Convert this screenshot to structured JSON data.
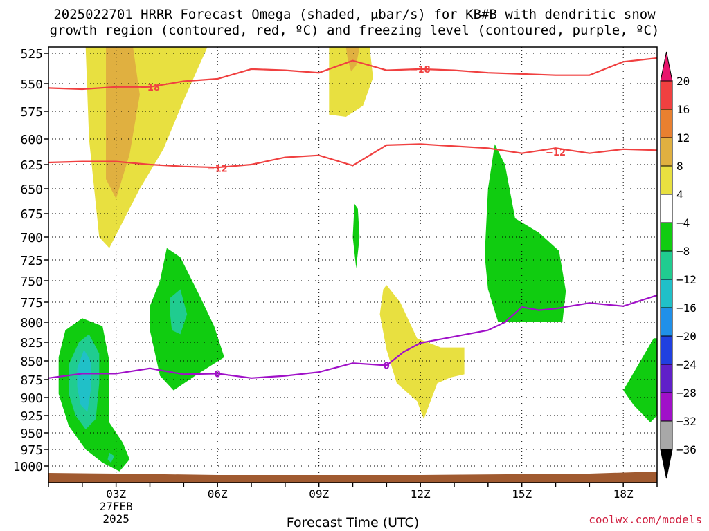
{
  "title_line1": "2025022701 HRRR Forecast Omega (shaded, μbar/s) for KB#B with dendritic snow",
  "title_line2": "growth region (contoured, red, ºC) and freezing level (contoured, purple, ºC)",
  "credit": "coolwx.com/models",
  "chart_data": {
    "type": "heatmap",
    "xlabel": "Forecast Time (UTC)",
    "ylabel": "",
    "x_unit": "forecast hour",
    "xlim": [
      0,
      18
    ],
    "ylim": [
      1010,
      520
    ],
    "y_ticks": [
      525,
      550,
      575,
      600,
      625,
      650,
      675,
      700,
      725,
      750,
      775,
      800,
      825,
      850,
      875,
      900,
      925,
      950,
      975,
      1000
    ],
    "x_ticks": [
      {
        "hour": 2,
        "label": "03Z",
        "sub": [
          "27FEB",
          "2025"
        ]
      },
      {
        "hour": 5,
        "label": "06Z"
      },
      {
        "hour": 8,
        "label": "09Z"
      },
      {
        "hour": 11,
        "label": "12Z"
      },
      {
        "hour": 14,
        "label": "15Z"
      },
      {
        "hour": 17,
        "label": "18Z"
      }
    ],
    "colorbar": {
      "labels": [
        "20",
        "16",
        "12",
        "8",
        "4",
        "−4",
        "−8",
        "−12",
        "−16",
        "−20",
        "−24",
        "−28",
        "−32",
        "−36"
      ],
      "colors": [
        "#e8146c",
        "#f04040",
        "#e88030",
        "#e0b040",
        "#e8e040",
        "#ffffff",
        "#10cc10",
        "#20cc90",
        "#20c0c8",
        "#2090e8",
        "#2040e0",
        "#6020c8",
        "#a010c8",
        "#a8a8a8"
      ],
      "bottom_color": "#000000"
    },
    "contours": [
      {
        "name": "-18",
        "color": "#f04040",
        "label": "−18",
        "points": [
          [
            0,
            554
          ],
          [
            1,
            555
          ],
          [
            2,
            553
          ],
          [
            3,
            553
          ],
          [
            4,
            548
          ],
          [
            5,
            546
          ],
          [
            6,
            538
          ],
          [
            7,
            539
          ],
          [
            8,
            541
          ],
          [
            9,
            531
          ],
          [
            10,
            539
          ],
          [
            11,
            538
          ],
          [
            12,
            539
          ],
          [
            13,
            541
          ],
          [
            14,
            542
          ],
          [
            15,
            543
          ],
          [
            16,
            543
          ],
          [
            17,
            532
          ],
          [
            18,
            529
          ]
        ],
        "label_positions": [
          [
            3,
            553
          ],
          [
            11,
            538
          ]
        ]
      },
      {
        "name": "-12",
        "color": "#f04040",
        "label": "−12",
        "points": [
          [
            0,
            623
          ],
          [
            1,
            622
          ],
          [
            2,
            622
          ],
          [
            3,
            625
          ],
          [
            4,
            627
          ],
          [
            5,
            628
          ],
          [
            6,
            625
          ],
          [
            7,
            618
          ],
          [
            8,
            616
          ],
          [
            9,
            626
          ],
          [
            10,
            606
          ],
          [
            11,
            605
          ],
          [
            12,
            607
          ],
          [
            13,
            609
          ],
          [
            14,
            614
          ],
          [
            15,
            609
          ],
          [
            16,
            614
          ],
          [
            17,
            610
          ],
          [
            18,
            611
          ]
        ],
        "label_positions": [
          [
            5,
            629
          ],
          [
            15,
            613
          ]
        ]
      },
      {
        "name": "0",
        "color": "#a010c8",
        "label": "0",
        "points": [
          [
            0,
            873
          ],
          [
            1,
            867
          ],
          [
            2,
            867
          ],
          [
            3,
            860
          ],
          [
            4,
            868
          ],
          [
            5,
            867
          ],
          [
            6,
            873
          ],
          [
            7,
            870
          ],
          [
            8,
            865
          ],
          [
            9,
            853
          ],
          [
            10,
            856
          ],
          [
            10.5,
            838
          ],
          [
            11,
            826
          ],
          [
            12,
            818
          ],
          [
            13,
            810
          ],
          [
            13.5,
            800
          ],
          [
            14,
            781
          ],
          [
            14.5,
            785
          ],
          [
            15,
            783
          ],
          [
            16,
            776
          ],
          [
            17,
            780
          ],
          [
            18,
            767
          ]
        ],
        "label_positions": [
          [
            5,
            867
          ],
          [
            10,
            856
          ]
        ]
      }
    ],
    "omega_regions": [
      {
        "name": "ascent-top-left",
        "color": "#e8e040",
        "value_range": [
          4,
          8
        ],
        "points": [
          [
            1.3,
            520
          ],
          [
            4.7,
            520
          ],
          [
            4.0,
            565
          ],
          [
            3.4,
            610
          ],
          [
            2.7,
            650
          ],
          [
            1.8,
            712
          ],
          [
            1.5,
            700
          ],
          [
            1.2,
            600
          ],
          [
            1.1,
            520
          ]
        ]
      },
      {
        "name": "ascent-top-left-core",
        "color": "#e0b040",
        "value_range": [
          8,
          12
        ],
        "points": [
          [
            1.8,
            520
          ],
          [
            2.5,
            520
          ],
          [
            2.7,
            560
          ],
          [
            2.4,
            615
          ],
          [
            2.0,
            660
          ],
          [
            1.7,
            640
          ],
          [
            1.7,
            590
          ],
          [
            1.7,
            520
          ]
        ]
      },
      {
        "name": "descent-left",
        "color": "#10cc10",
        "value_range": [
          -8,
          -4
        ],
        "points": [
          [
            0.3,
            845
          ],
          [
            0.5,
            810
          ],
          [
            1.0,
            795
          ],
          [
            1.6,
            805
          ],
          [
            1.8,
            850
          ],
          [
            1.8,
            935
          ],
          [
            2.2,
            965
          ],
          [
            2.4,
            990
          ],
          [
            2.1,
            1008
          ],
          [
            1.6,
            995
          ],
          [
            1.1,
            975
          ],
          [
            0.6,
            940
          ],
          [
            0.3,
            895
          ]
        ]
      },
      {
        "name": "descent-left-core",
        "color": "#20cc90",
        "value_range": [
          -12,
          -8
        ],
        "points": [
          [
            0.6,
            855
          ],
          [
            0.9,
            825
          ],
          [
            1.2,
            815
          ],
          [
            1.5,
            840
          ],
          [
            1.5,
            880
          ],
          [
            1.4,
            930
          ],
          [
            1.1,
            945
          ],
          [
            0.8,
            925
          ],
          [
            0.6,
            895
          ]
        ]
      },
      {
        "name": "descent-left-core2",
        "color": "#20c0c8",
        "value_range": [
          -16,
          -12
        ],
        "points": [
          [
            0.85,
            860
          ],
          [
            1.05,
            835
          ],
          [
            1.25,
            850
          ],
          [
            1.25,
            890
          ],
          [
            1.15,
            920
          ],
          [
            0.95,
            910
          ],
          [
            0.85,
            885
          ]
        ]
      },
      {
        "name": "descent-left-bottom-core",
        "color": "#20cc90",
        "value_range": [
          -12,
          -8
        ],
        "points": [
          [
            1.8,
            980
          ],
          [
            1.95,
            985
          ],
          [
            1.85,
            995
          ],
          [
            1.75,
            990
          ]
        ]
      },
      {
        "name": "descent-center-left",
        "color": "#10cc10",
        "value_range": [
          -8,
          -4
        ],
        "points": [
          [
            3.3,
            750
          ],
          [
            3.5,
            712
          ],
          [
            3.9,
            722
          ],
          [
            4.5,
            770
          ],
          [
            4.9,
            805
          ],
          [
            5.2,
            845
          ],
          [
            4.5,
            865
          ],
          [
            3.7,
            890
          ],
          [
            3.3,
            870
          ],
          [
            3.0,
            810
          ],
          [
            3.0,
            780
          ]
        ]
      },
      {
        "name": "descent-center-left-core",
        "color": "#20cc90",
        "value_range": [
          -12,
          -8
        ],
        "points": [
          [
            3.6,
            770
          ],
          [
            3.9,
            760
          ],
          [
            4.1,
            790
          ],
          [
            3.9,
            815
          ],
          [
            3.65,
            810
          ],
          [
            3.6,
            790
          ]
        ]
      },
      {
        "name": "ascent-top-center",
        "color": "#e8e040",
        "value_range": [
          4,
          8
        ],
        "points": [
          [
            8.3,
            520
          ],
          [
            9.5,
            520
          ],
          [
            9.6,
            545
          ],
          [
            9.3,
            570
          ],
          [
            8.8,
            580
          ],
          [
            8.3,
            578
          ],
          [
            8.3,
            545
          ]
        ]
      },
      {
        "name": "ascent-top-center-core",
        "color": "#e0b040",
        "value_range": [
          8,
          12
        ],
        "points": [
          [
            8.8,
            520
          ],
          [
            9.2,
            520
          ],
          [
            9.1,
            535
          ],
          [
            8.95,
            540
          ],
          [
            8.85,
            530
          ]
        ]
      },
      {
        "name": "descent-thin-center",
        "color": "#10cc10",
        "value_range": [
          -8,
          -4
        ],
        "points": [
          [
            9.05,
            665
          ],
          [
            9.15,
            670
          ],
          [
            9.2,
            700
          ],
          [
            9.1,
            735
          ],
          [
            9.0,
            700
          ]
        ]
      },
      {
        "name": "ascent-center",
        "color": "#e8e040",
        "value_range": [
          4,
          8
        ],
        "points": [
          [
            9.9,
            760
          ],
          [
            10.0,
            755
          ],
          [
            10.4,
            775
          ],
          [
            10.9,
            820
          ],
          [
            11.6,
            832
          ],
          [
            12.3,
            832
          ],
          [
            12.3,
            868
          ],
          [
            11.9,
            872
          ],
          [
            11.5,
            880
          ],
          [
            11.1,
            930
          ],
          [
            10.9,
            905
          ],
          [
            10.3,
            880
          ],
          [
            10.0,
            835
          ],
          [
            9.8,
            790
          ]
        ]
      },
      {
        "name": "descent-right",
        "color": "#10cc10",
        "value_range": [
          -8,
          -4
        ],
        "points": [
          [
            13.0,
            650
          ],
          [
            13.2,
            605
          ],
          [
            13.5,
            625
          ],
          [
            13.8,
            680
          ],
          [
            14.5,
            695
          ],
          [
            15.1,
            715
          ],
          [
            15.3,
            762
          ],
          [
            15.2,
            800
          ],
          [
            13.3,
            800
          ],
          [
            13.0,
            760
          ],
          [
            12.9,
            720
          ]
        ]
      },
      {
        "name": "descent-far-right",
        "color": "#10cc10",
        "value_range": [
          -8,
          -4
        ],
        "points": [
          [
            17.0,
            890
          ],
          [
            17.9,
            820
          ],
          [
            18.0,
            820
          ],
          [
            18.0,
            925
          ],
          [
            17.8,
            935
          ],
          [
            17.3,
            910
          ]
        ]
      }
    ],
    "surface_color": "#a05a30"
  }
}
